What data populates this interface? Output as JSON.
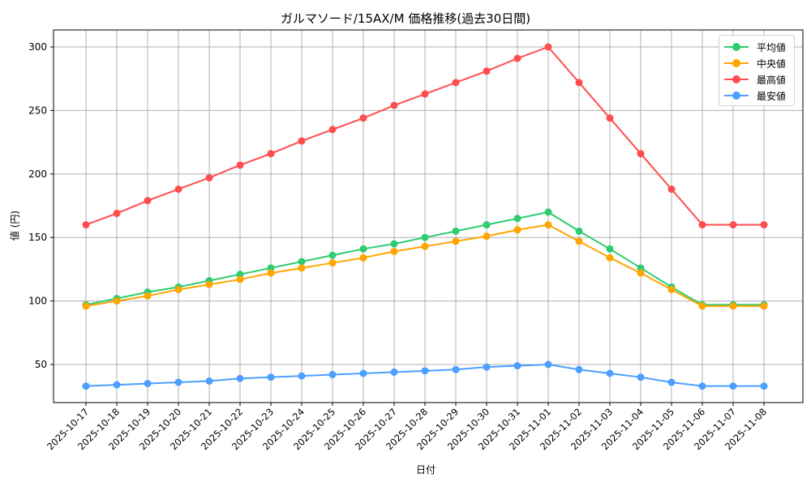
{
  "chart_data": {
    "type": "line",
    "title": "ガルマソード/15AX/M 価格推移(過去30日間)",
    "xlabel": "日付",
    "ylabel": "値 (円)",
    "ylim": [
      20,
      313
    ],
    "yticks": [
      50,
      100,
      150,
      200,
      250,
      300
    ],
    "grid": true,
    "legend_position": "upper right",
    "categories": [
      "2025-10-17",
      "2025-10-18",
      "2025-10-19",
      "2025-10-20",
      "2025-10-21",
      "2025-10-22",
      "2025-10-23",
      "2025-10-24",
      "2025-10-25",
      "2025-10-26",
      "2025-10-27",
      "2025-10-28",
      "2025-10-29",
      "2025-10-30",
      "2025-10-31",
      "2025-11-01",
      "2025-11-02",
      "2025-11-03",
      "2025-11-04",
      "2025-11-05",
      "2025-11-06",
      "2025-11-07",
      "2025-11-08"
    ],
    "series": [
      {
        "name": "平均値",
        "color": "#2ecc71",
        "values": [
          97,
          102,
          107,
          111,
          116,
          121,
          126,
          131,
          136,
          141,
          145,
          150,
          155,
          160,
          165,
          170,
          155,
          141,
          126,
          111,
          97,
          97,
          97
        ]
      },
      {
        "name": "中央値",
        "color": "#ffa500",
        "values": [
          96,
          100,
          104,
          109,
          113,
          117,
          122,
          126,
          130,
          134,
          139,
          143,
          147,
          151,
          156,
          160,
          147,
          134,
          122,
          109,
          96,
          96,
          96
        ]
      },
      {
        "name": "最高値",
        "color": "#ff4d4d",
        "values": [
          160,
          169,
          179,
          188,
          197,
          207,
          216,
          226,
          235,
          244,
          254,
          263,
          272,
          281,
          291,
          300,
          272,
          244,
          216,
          188,
          160,
          160,
          160
        ]
      },
      {
        "name": "最安値",
        "color": "#4d9fff",
        "values": [
          33,
          34,
          35,
          36,
          37,
          39,
          40,
          41,
          42,
          43,
          44,
          45,
          46,
          48,
          49,
          50,
          46,
          43,
          40,
          36,
          33,
          33,
          33
        ]
      }
    ]
  },
  "legend": {
    "items": [
      {
        "label": "平均値",
        "color": "#2ecc71"
      },
      {
        "label": "中央値",
        "color": "#ffa500"
      },
      {
        "label": "最高値",
        "color": "#ff4d4d"
      },
      {
        "label": "最安値",
        "color": "#4d9fff"
      }
    ]
  }
}
